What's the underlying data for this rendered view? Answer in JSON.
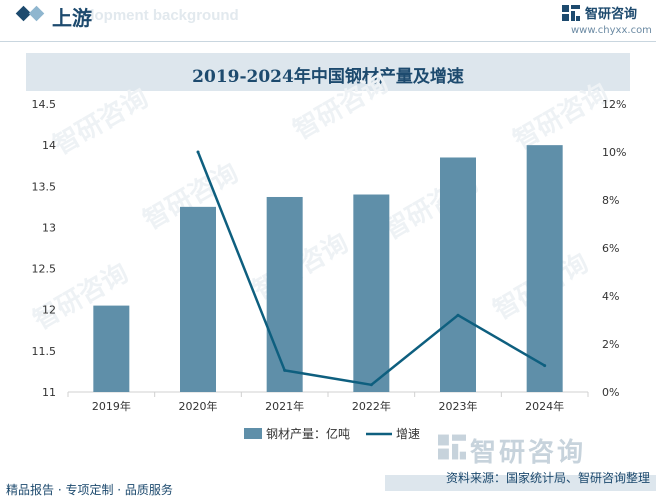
{
  "header": {
    "section_title": "上游",
    "background_word": "elopment background",
    "logo_text": "智研咨询",
    "logo_url": "www.chyxx.com"
  },
  "title": "2019-2024年中国钢材产量及增速",
  "chart_data": {
    "type": "bar+line",
    "categories": [
      "2019年",
      "2020年",
      "2021年",
      "2022年",
      "2023年",
      "2024年"
    ],
    "series": [
      {
        "name": "钢材产量：亿吨",
        "type": "bar",
        "axis": "left",
        "values": [
          12.05,
          13.25,
          13.37,
          13.4,
          13.85,
          14.0
        ],
        "color": "#5f8fa9"
      },
      {
        "name": "增速",
        "type": "line",
        "axis": "right",
        "values": [
          null,
          10.0,
          0.9,
          0.3,
          3.2,
          1.1
        ],
        "color": "#0e5f7f"
      }
    ],
    "y_left": {
      "min": 11,
      "max": 14.5,
      "ticks": [
        "11",
        "11.5",
        "12",
        "12.5",
        "13",
        "13.5",
        "14",
        "14.5"
      ]
    },
    "y_right": {
      "min": 0,
      "max": 12,
      "ticks": [
        "0%",
        "2%",
        "4%",
        "6%",
        "8%",
        "10%",
        "12%"
      ]
    },
    "legend": {
      "position": "bottom"
    }
  },
  "watermark": {
    "text": "智研咨询"
  },
  "footer": {
    "left": "精品报告 · 专项定制 · 品质服务",
    "right": "资料来源：国家统计局、智研咨询整理"
  }
}
